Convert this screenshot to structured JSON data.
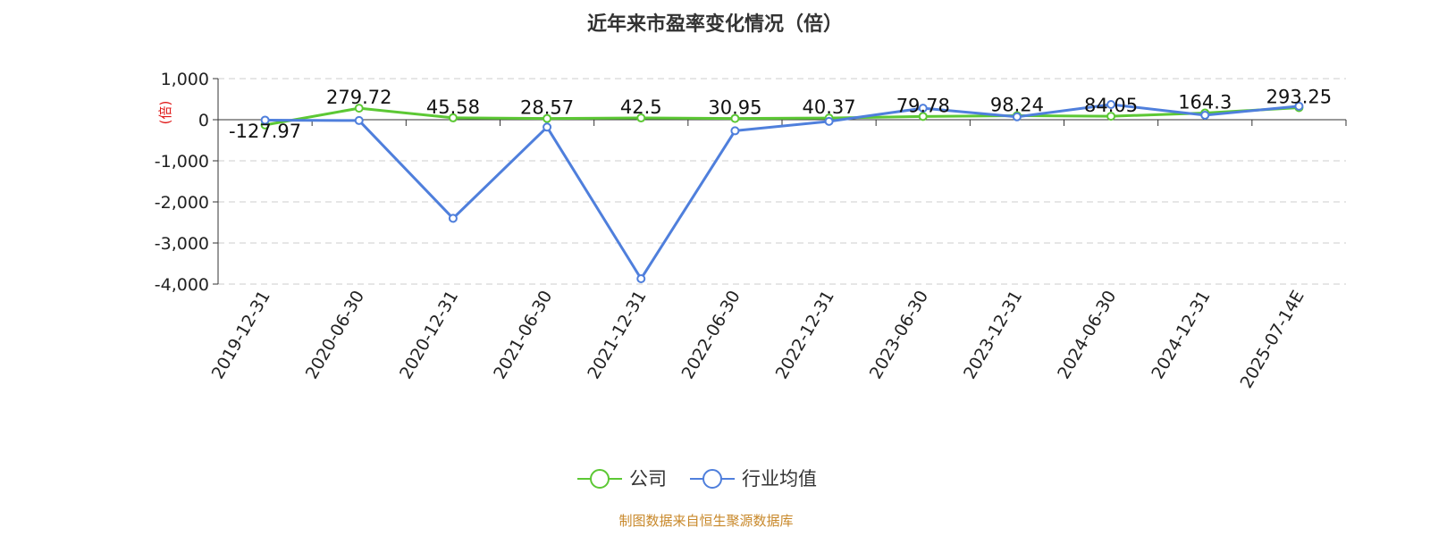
{
  "chart_data": {
    "type": "line",
    "title": "近年来市盈率变化情况（倍）",
    "ylabel": "(倍)",
    "xlabel": "",
    "categories": [
      "2019-12-31",
      "2020-06-30",
      "2020-12-31",
      "2021-06-30",
      "2021-12-31",
      "2022-06-30",
      "2022-12-31",
      "2023-06-30",
      "2023-12-31",
      "2024-06-30",
      "2024-12-31",
      "2025-07-14E"
    ],
    "ylim": [
      -4000,
      1000
    ],
    "yticks": [
      1000,
      0,
      -1000,
      -2000,
      -3000,
      -4000
    ],
    "ytick_labels": [
      "1,000",
      "0",
      "-1,000",
      "-2,000",
      "-3,000",
      "-4,000"
    ],
    "grid": true,
    "legend_position": "bottom",
    "series": [
      {
        "name": "公司",
        "color": "#5cc834",
        "values": [
          -127.97,
          279.72,
          45.58,
          28.57,
          42.5,
          30.95,
          40.37,
          79.78,
          98.24,
          84.05,
          164.3,
          293.25
        ],
        "labels": [
          "-127.97",
          "279.72",
          "45.58",
          "28.57",
          "42.5",
          "30.95",
          "40.37",
          "79.78",
          "98.24",
          "84.05",
          "164.3",
          "293.25"
        ]
      },
      {
        "name": "行业均值",
        "color": "#4f7fdc",
        "values": [
          -10,
          -20,
          -2400,
          -180,
          -3870,
          -270,
          -40,
          280,
          70,
          370,
          110,
          330
        ]
      }
    ]
  },
  "source_text": "制图数据来自恒生聚源数据库",
  "colors": {
    "ylabel": "#e01818",
    "source": "#c8882a",
    "grid": "#cccccc"
  }
}
